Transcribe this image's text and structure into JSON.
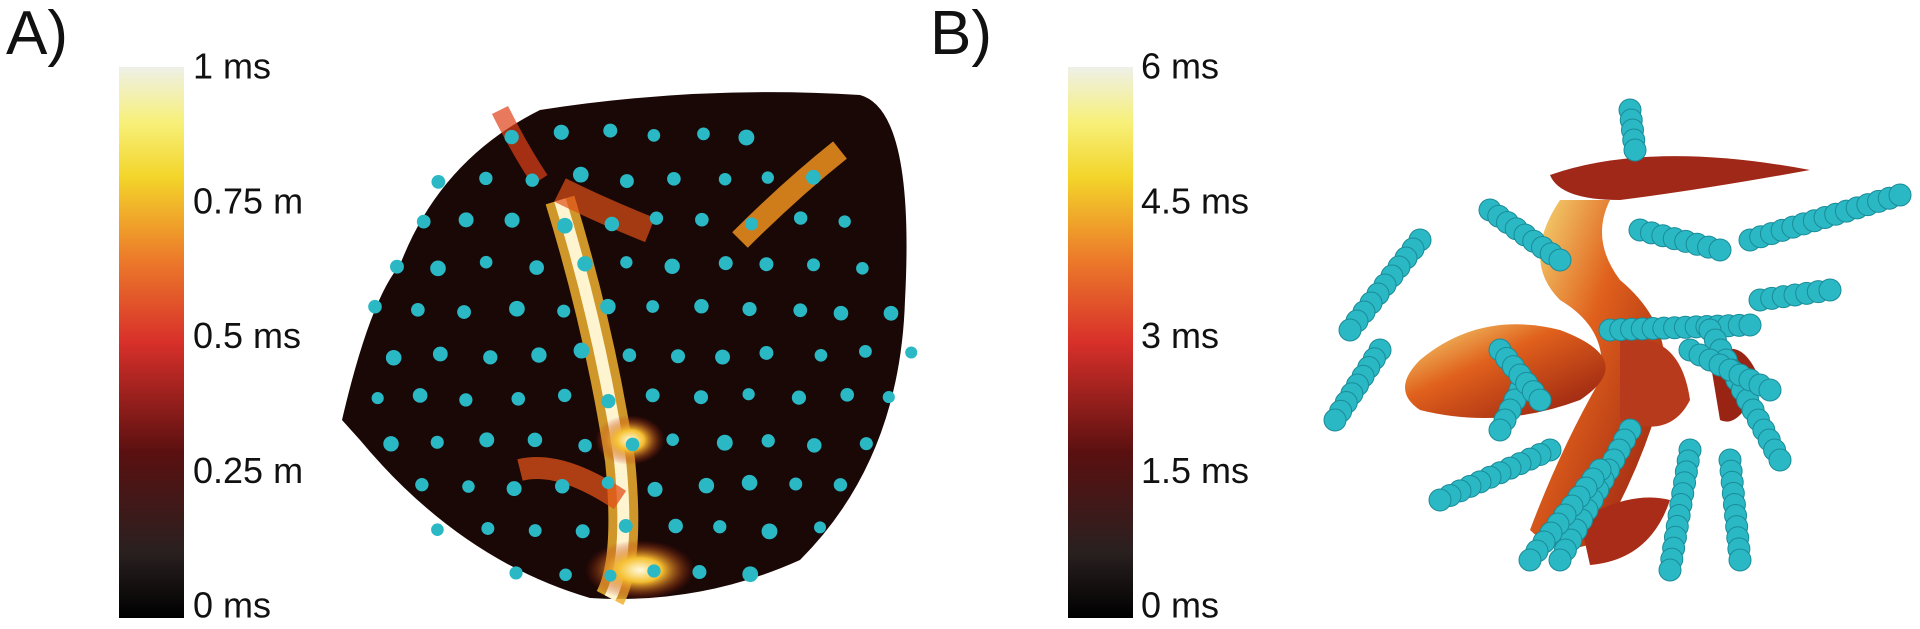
{
  "panels": [
    {
      "label": "A)",
      "colorbar": {
        "ticks": [
          "1 ms",
          "0.75 m",
          "0.5 ms",
          "0.25 m",
          "0 ms"
        ]
      }
    },
    {
      "label": "B)",
      "colorbar": {
        "ticks": [
          "6 ms",
          "4.5 ms",
          "3 ms",
          "1.5 ms",
          "0 ms"
        ]
      }
    }
  ]
}
